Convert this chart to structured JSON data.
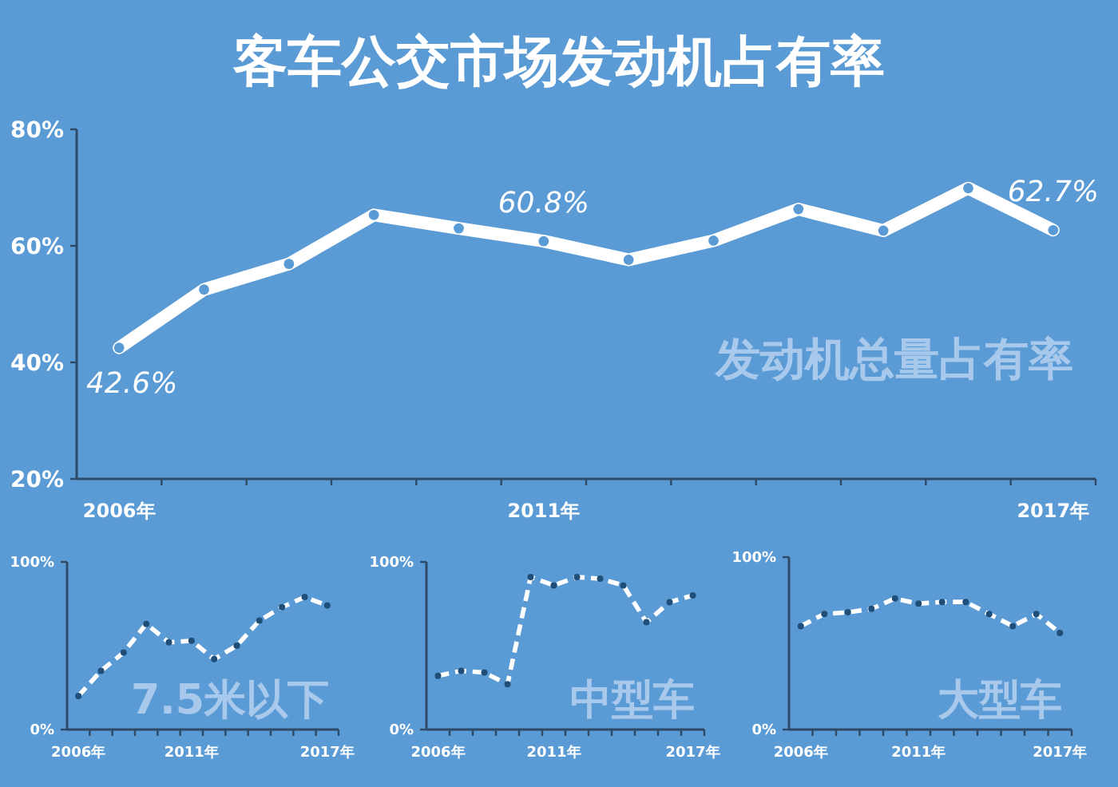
{
  "chart_data": [
    {
      "type": "line",
      "title": "客车公交市场发动机占有率",
      "categories": [
        "2006年",
        null,
        null,
        null,
        null,
        "2011年",
        null,
        null,
        null,
        null,
        null,
        "2017年"
      ],
      "series": [
        {
          "color": "#ffffff",
          "values": [
            42.5,
            52.5,
            56.9,
            65.3,
            63.0,
            60.8,
            57.6,
            60.9,
            66.3,
            62.6,
            69.9,
            62.7
          ]
        }
      ],
      "ylim": [
        20,
        80
      ],
      "yticks": [
        {
          "value": 20,
          "label": "20%"
        },
        {
          "value": 40,
          "label": "40%"
        },
        {
          "value": 60,
          "label": "60%"
        },
        {
          "value": 80,
          "label": "80%"
        }
      ],
      "marker": "circle",
      "line_style": "solid",
      "annotations": [
        {
          "text": "42.6%",
          "x": "2006年",
          "y": 42.5
        },
        {
          "text": "60.8%",
          "x": "2011年",
          "y": 60.8
        },
        {
          "text": "62.7%",
          "x": "2017年",
          "y": 62.7
        },
        "发动机总量占有率"
      ]
    },
    {
      "type": "line",
      "categories": [
        "2006年",
        null,
        null,
        null,
        null,
        "2011年",
        null,
        null,
        null,
        null,
        null,
        "2017年"
      ],
      "series": [
        {
          "color": "#ffffff",
          "values": [
            20,
            35,
            46,
            63,
            52,
            53,
            42,
            50,
            65,
            73,
            79,
            74
          ]
        }
      ],
      "ylim": [
        0,
        100
      ],
      "yticks": [
        {
          "value": 0,
          "label": "0%"
        },
        {
          "value": 100,
          "label": "100%"
        }
      ],
      "marker": "circle",
      "line_style": "dashed",
      "annotations": [
        "7.5米以下"
      ]
    },
    {
      "type": "line",
      "categories": [
        "2006年",
        null,
        null,
        null,
        null,
        "2011年",
        null,
        null,
        null,
        null,
        null,
        "2017年"
      ],
      "series": [
        {
          "color": "#ffffff",
          "values": [
            32,
            35,
            34,
            27,
            91,
            86,
            91,
            90,
            86,
            64,
            76,
            80
          ]
        }
      ],
      "ylim": [
        0,
        100
      ],
      "yticks": [
        {
          "value": 0,
          "label": "0%"
        },
        {
          "value": 100,
          "label": "100%"
        }
      ],
      "marker": "circle",
      "line_style": "dashed",
      "annotations": [
        "中型车"
      ]
    },
    {
      "type": "line",
      "categories": [
        "2006年",
        null,
        null,
        null,
        null,
        "2011年",
        null,
        null,
        null,
        null,
        null,
        "2017年"
      ],
      "series": [
        {
          "color": "#ffffff",
          "values": [
            60,
            67,
            68,
            70,
            76,
            73,
            74,
            74,
            67,
            60,
            67,
            56
          ]
        }
      ],
      "ylim": [
        0,
        100
      ],
      "yticks": [
        {
          "value": 0,
          "label": "0%"
        },
        {
          "value": 100,
          "label": "100%"
        }
      ],
      "marker": "circle",
      "line_style": "dashed",
      "annotations": [
        "大型车"
      ]
    }
  ]
}
